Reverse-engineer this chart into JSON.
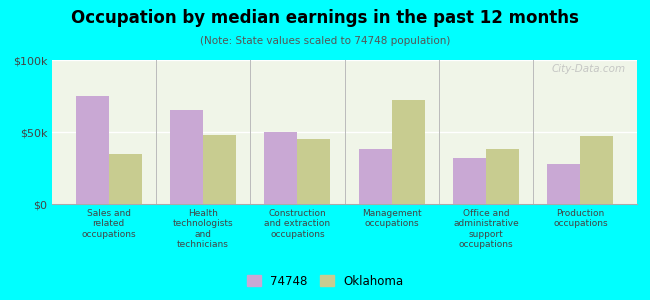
{
  "title": "Occupation by median earnings in the past 12 months",
  "subtitle": "(Note: State values scaled to 74748 population)",
  "categories": [
    "Sales and\nrelated\noccupations",
    "Health\ntechnologists\nand\ntechnicians",
    "Construction\nand extraction\noccupations",
    "Management\noccupations",
    "Office and\nadministrative\nsupport\noccupations",
    "Production\noccupations"
  ],
  "values_74748": [
    75000,
    65000,
    50000,
    38000,
    32000,
    28000
  ],
  "values_oklahoma": [
    35000,
    48000,
    45000,
    72000,
    38000,
    47000
  ],
  "color_74748": "#c9a8d4",
  "color_oklahoma": "#c8cc90",
  "background_color": "#00ffff",
  "plot_bg": "#f0f5e8",
  "ylim": [
    0,
    100000
  ],
  "yticks": [
    0,
    50000,
    100000
  ],
  "ytick_labels": [
    "$0",
    "$50k",
    "$100k"
  ],
  "legend_label_74748": "74748",
  "legend_label_oklahoma": "Oklahoma",
  "watermark": "City-Data.com"
}
